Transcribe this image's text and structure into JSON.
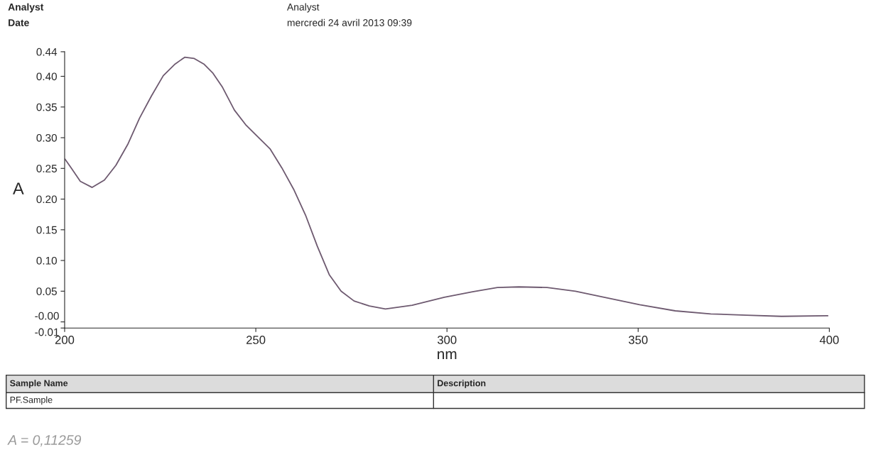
{
  "chart_data": {
    "type": "line",
    "xlabel": "nm",
    "ylabel": "A",
    "xlim": [
      200,
      400
    ],
    "xticks": [
      200,
      250,
      300,
      350,
      400
    ],
    "ylim": [
      -0.01,
      0.44
    ],
    "yticks": [
      {
        "value": -0.01,
        "label": "-0.01"
      },
      {
        "value": 0,
        "label": "-0.00"
      },
      0.05,
      {
        "value": 0.1,
        "label": "0.10"
      },
      0.15,
      {
        "value": 0.2,
        "label": "0.20"
      },
      0.25,
      {
        "value": 0.3,
        "label": "0.30"
      },
      0.35,
      {
        "value": 0.4,
        "label": "0.40"
      },
      0.44
    ],
    "grid": false,
    "marker": "none",
    "line_style": "solid",
    "series": [
      {
        "color": "#6e5a70",
        "x": [
          200.1,
          201.7,
          204.1,
          207.2,
          210.4,
          213.4,
          216.5,
          219.6,
          222.7,
          225.8,
          228.9,
          231.4,
          233.9,
          236.4,
          238.8,
          241.3,
          244.4,
          247.5,
          250.6,
          253.7,
          256.8,
          259.9,
          263.0,
          266.1,
          269.2,
          272.3,
          275.7,
          279.7,
          283.9,
          290.9,
          299.3,
          306.7,
          313.2,
          318.8,
          326.2,
          333.6,
          341.1,
          350.4,
          359.7,
          369.0,
          378.3,
          387.5,
          399.6
        ],
        "values": [
          0.265,
          0.251,
          0.229,
          0.219,
          0.231,
          0.255,
          0.289,
          0.332,
          0.368,
          0.401,
          0.42,
          0.431,
          0.429,
          0.42,
          0.405,
          0.382,
          0.345,
          0.32,
          0.301,
          0.282,
          0.251,
          0.216,
          0.174,
          0.123,
          0.077,
          0.05,
          0.034,
          0.026,
          0.021,
          0.027,
          0.04,
          0.049,
          0.056,
          0.057,
          0.056,
          0.05,
          0.04,
          0.028,
          0.018,
          0.013,
          0.011,
          0.009,
          0.01
        ]
      }
    ],
    "annotations": [
      "Analyst",
      "Date",
      "Analyst",
      "mercredi 24 avril 2013 09:39",
      "Sample Name",
      "Description",
      "PF.Sample",
      "A = 0,11259"
    ]
  }
}
